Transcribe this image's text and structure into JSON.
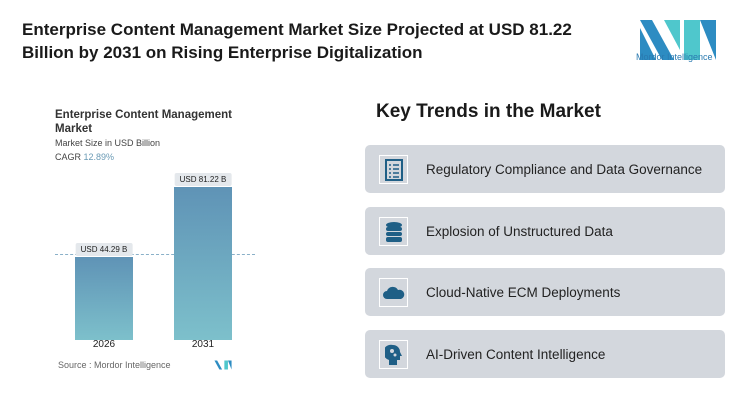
{
  "header": {
    "title": "Enterprise Content Management Market Size Projected at USD 81.22 Billion by 2031 on Rising Enterprise Digitalization",
    "logo_text": "Mordor Intelligence"
  },
  "chart_data": {
    "type": "bar",
    "title": "Enterprise Content Management Market",
    "subtitle": "Market Size in USD Billion",
    "cagr_label": "CAGR",
    "cagr_value": "12.89%",
    "categories": [
      "2026",
      "2031"
    ],
    "values": [
      44.29,
      81.22
    ],
    "data_labels": [
      "USD 44.29 B",
      "USD 81.22 B"
    ],
    "ylim": [
      0,
      81.22
    ],
    "bar_color": "#5f93b6",
    "source": "Source :  Mordor Intelligence"
  },
  "trends": {
    "title": "Key Trends in the Market",
    "items": [
      {
        "label": "Regulatory Compliance and Data Governance",
        "icon": "checklist-icon"
      },
      {
        "label": "Explosion of Unstructured Data",
        "icon": "database-icon"
      },
      {
        "label": "Cloud-Native ECM Deployments",
        "icon": "cloud-icon"
      },
      {
        "label": "AI-Driven Content Intelligence",
        "icon": "ai-head-icon"
      }
    ]
  },
  "colors": {
    "accent": "#1f5f86",
    "card": "#d3d7dd"
  }
}
